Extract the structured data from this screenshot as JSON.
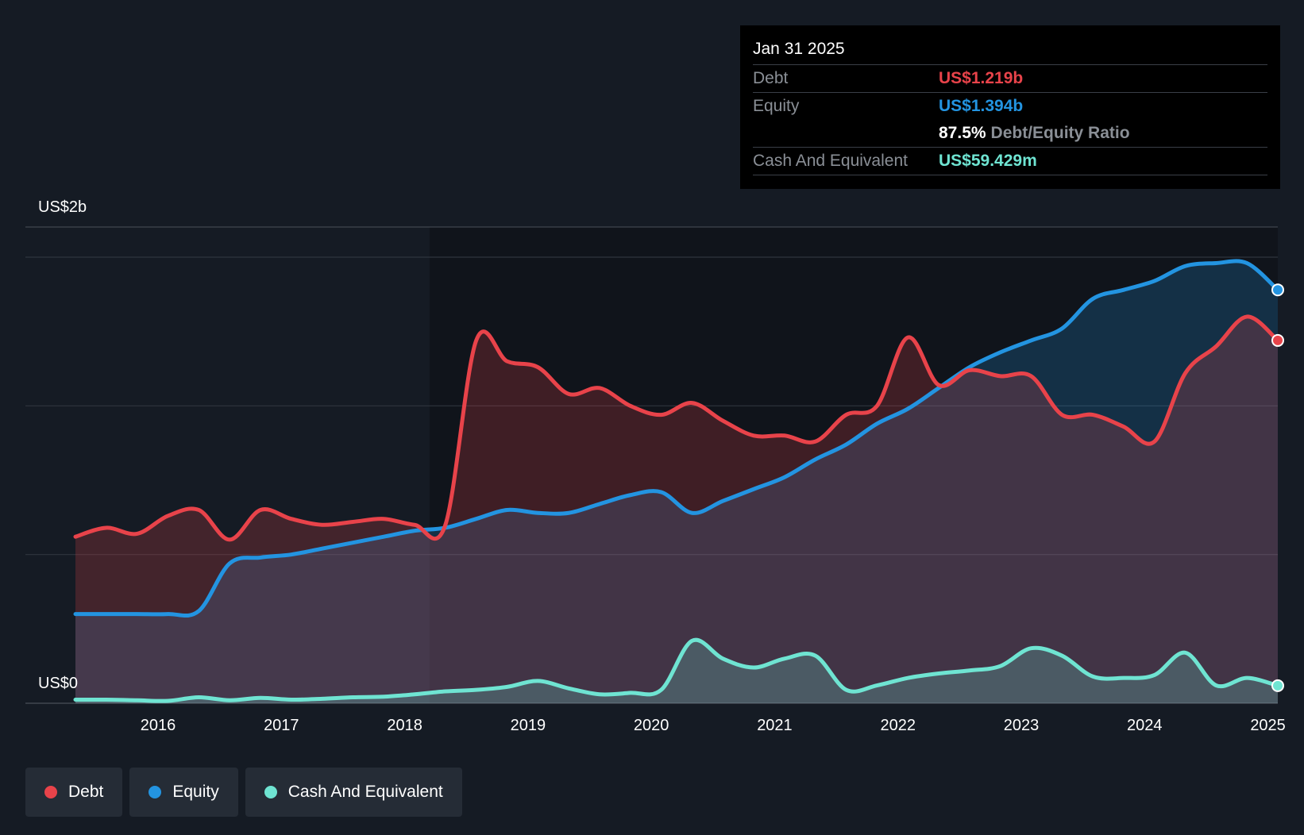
{
  "tooltip": {
    "date": "Jan 31 2025",
    "debt_label": "Debt",
    "debt_value": "US$1.219b",
    "equity_label": "Equity",
    "equity_value": "US$1.394b",
    "ratio_value": "87.5%",
    "ratio_label": "Debt/Equity Ratio",
    "cash_label": "Cash And Equivalent",
    "cash_value": "US$59.429m"
  },
  "legend": {
    "debt": "Debt",
    "equity": "Equity",
    "cash": "Cash And Equivalent"
  },
  "colors": {
    "debt": "#e8434a",
    "equity": "#2394e1",
    "cash": "#6fe4d2",
    "background": "#151b24",
    "plot_highlight": "#10141b"
  },
  "chart_data": {
    "type": "area",
    "title": "",
    "ylabel_top": "US$2b",
    "ylabel_bottom": "US$0",
    "ylim": [
      0,
      1.5
    ],
    "y_unit": "US$ billions",
    "xlim": [
      2015.33,
      2025.08
    ],
    "x_ticks": [
      {
        "value": 2016,
        "label": "2016"
      },
      {
        "value": 2017,
        "label": "2017"
      },
      {
        "value": 2018,
        "label": "2018"
      },
      {
        "value": 2019,
        "label": "2019"
      },
      {
        "value": 2020,
        "label": "2020"
      },
      {
        "value": 2021,
        "label": "2021"
      },
      {
        "value": 2022,
        "label": "2022"
      },
      {
        "value": 2023,
        "label": "2023"
      },
      {
        "value": 2024,
        "label": "2024"
      },
      {
        "value": 2025,
        "label": "2025"
      }
    ],
    "gridlines": [
      0.5,
      1.0,
      1.5
    ],
    "highlight_from": 2018.33,
    "series": [
      {
        "name": "Debt",
        "key": "debt",
        "points": [
          [
            2015.33,
            0.56
          ],
          [
            2015.58,
            0.59
          ],
          [
            2015.83,
            0.57
          ],
          [
            2016.08,
            0.63
          ],
          [
            2016.33,
            0.65
          ],
          [
            2016.58,
            0.55
          ],
          [
            2016.83,
            0.65
          ],
          [
            2017.08,
            0.62
          ],
          [
            2017.33,
            0.6
          ],
          [
            2017.58,
            0.61
          ],
          [
            2017.83,
            0.62
          ],
          [
            2018.08,
            0.6
          ],
          [
            2018.33,
            0.6
          ],
          [
            2018.58,
            1.22
          ],
          [
            2018.83,
            1.15
          ],
          [
            2019.08,
            1.13
          ],
          [
            2019.33,
            1.04
          ],
          [
            2019.58,
            1.06
          ],
          [
            2019.83,
            1.0
          ],
          [
            2020.08,
            0.97
          ],
          [
            2020.33,
            1.01
          ],
          [
            2020.58,
            0.95
          ],
          [
            2020.83,
            0.9
          ],
          [
            2021.08,
            0.9
          ],
          [
            2021.33,
            0.88
          ],
          [
            2021.58,
            0.97
          ],
          [
            2021.83,
            1.0
          ],
          [
            2022.08,
            1.23
          ],
          [
            2022.33,
            1.07
          ],
          [
            2022.58,
            1.12
          ],
          [
            2022.83,
            1.1
          ],
          [
            2023.08,
            1.1
          ],
          [
            2023.33,
            0.97
          ],
          [
            2023.58,
            0.97
          ],
          [
            2023.83,
            0.93
          ],
          [
            2024.08,
            0.88
          ],
          [
            2024.33,
            1.11
          ],
          [
            2024.58,
            1.2
          ],
          [
            2024.83,
            1.3
          ],
          [
            2025.08,
            1.22
          ]
        ]
      },
      {
        "name": "Equity",
        "key": "equity",
        "points": [
          [
            2015.33,
            0.3
          ],
          [
            2015.58,
            0.3
          ],
          [
            2015.83,
            0.3
          ],
          [
            2016.08,
            0.3
          ],
          [
            2016.33,
            0.31
          ],
          [
            2016.58,
            0.47
          ],
          [
            2016.83,
            0.49
          ],
          [
            2017.08,
            0.5
          ],
          [
            2017.33,
            0.52
          ],
          [
            2017.58,
            0.54
          ],
          [
            2017.83,
            0.56
          ],
          [
            2018.08,
            0.58
          ],
          [
            2018.33,
            0.59
          ],
          [
            2018.58,
            0.62
          ],
          [
            2018.83,
            0.65
          ],
          [
            2019.08,
            0.64
          ],
          [
            2019.33,
            0.64
          ],
          [
            2019.58,
            0.67
          ],
          [
            2019.83,
            0.7
          ],
          [
            2020.08,
            0.71
          ],
          [
            2020.33,
            0.64
          ],
          [
            2020.58,
            0.68
          ],
          [
            2020.83,
            0.72
          ],
          [
            2021.08,
            0.76
          ],
          [
            2021.33,
            0.82
          ],
          [
            2021.58,
            0.87
          ],
          [
            2021.83,
            0.94
          ],
          [
            2022.08,
            0.99
          ],
          [
            2022.33,
            1.06
          ],
          [
            2022.58,
            1.13
          ],
          [
            2022.83,
            1.18
          ],
          [
            2023.08,
            1.22
          ],
          [
            2023.33,
            1.26
          ],
          [
            2023.58,
            1.36
          ],
          [
            2023.83,
            1.39
          ],
          [
            2024.08,
            1.42
          ],
          [
            2024.33,
            1.47
          ],
          [
            2024.58,
            1.48
          ],
          [
            2024.83,
            1.48
          ],
          [
            2025.08,
            1.39
          ]
        ]
      },
      {
        "name": "Cash And Equivalent",
        "key": "cash",
        "points": [
          [
            2015.33,
            0.012
          ],
          [
            2015.58,
            0.012
          ],
          [
            2015.83,
            0.01
          ],
          [
            2016.08,
            0.008
          ],
          [
            2016.33,
            0.02
          ],
          [
            2016.58,
            0.01
          ],
          [
            2016.83,
            0.018
          ],
          [
            2017.08,
            0.012
          ],
          [
            2017.33,
            0.015
          ],
          [
            2017.58,
            0.02
          ],
          [
            2017.83,
            0.022
          ],
          [
            2018.08,
            0.03
          ],
          [
            2018.33,
            0.04
          ],
          [
            2018.58,
            0.045
          ],
          [
            2018.83,
            0.055
          ],
          [
            2019.08,
            0.075
          ],
          [
            2019.33,
            0.05
          ],
          [
            2019.58,
            0.03
          ],
          [
            2019.83,
            0.035
          ],
          [
            2020.08,
            0.045
          ],
          [
            2020.33,
            0.21
          ],
          [
            2020.58,
            0.15
          ],
          [
            2020.83,
            0.12
          ],
          [
            2021.08,
            0.15
          ],
          [
            2021.33,
            0.16
          ],
          [
            2021.58,
            0.045
          ],
          [
            2021.83,
            0.06
          ],
          [
            2022.08,
            0.085
          ],
          [
            2022.33,
            0.1
          ],
          [
            2022.58,
            0.11
          ],
          [
            2022.83,
            0.125
          ],
          [
            2023.08,
            0.185
          ],
          [
            2023.33,
            0.16
          ],
          [
            2023.58,
            0.09
          ],
          [
            2023.83,
            0.085
          ],
          [
            2024.08,
            0.095
          ],
          [
            2024.33,
            0.17
          ],
          [
            2024.58,
            0.06
          ],
          [
            2024.83,
            0.085
          ],
          [
            2025.08,
            0.059
          ]
        ]
      }
    ]
  }
}
